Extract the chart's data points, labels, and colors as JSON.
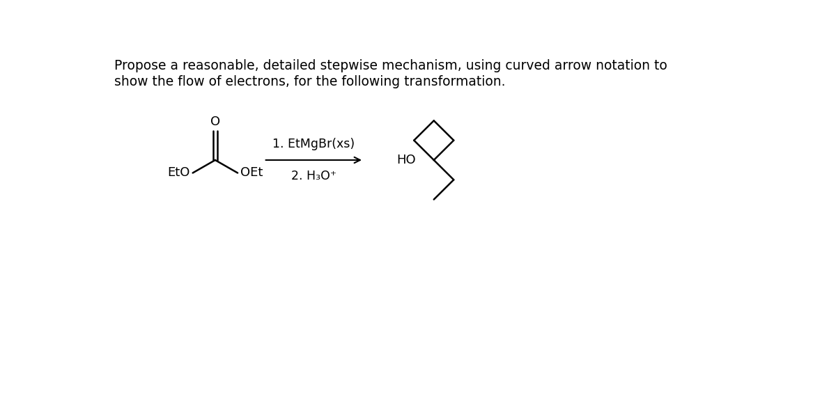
{
  "title_line1": "Propose a reasonable, detailed stepwise mechanism, using curved arrow notation to",
  "title_line2": "show the flow of electrons, for the following transformation.",
  "reagent1": "1. EtMgBr(xs)",
  "reagent2": "2. H₃O⁺",
  "label_eto": "EtO",
  "label_oet": "OEt",
  "label_ho": "HO",
  "background_color": "#ffffff",
  "text_color": "#000000",
  "title_fontsize": 13.5,
  "label_fontsize": 13,
  "reagent_fontsize": 12.5
}
